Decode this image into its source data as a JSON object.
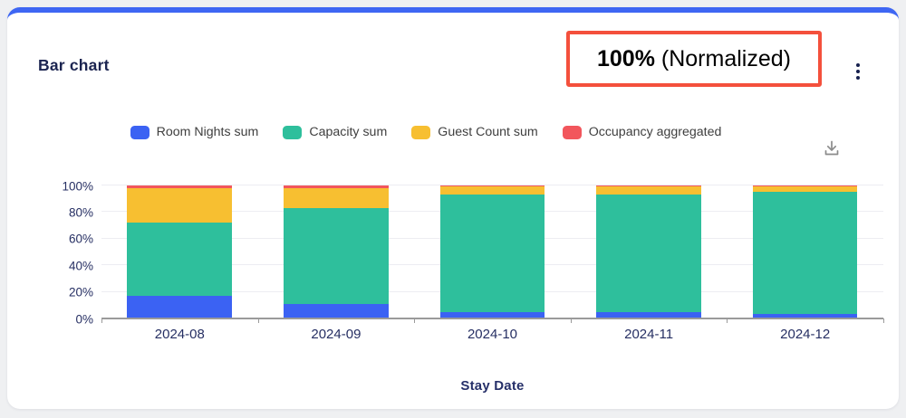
{
  "page": {
    "background": "#eff0f2",
    "accent_bar_color": "#3e66f3"
  },
  "card": {
    "title": "Bar chart",
    "annotation": {
      "value": "100%",
      "suffix": " (Normalized)",
      "border_color": "#f4503c"
    },
    "icons": {
      "menu": "kebab-menu-icon",
      "download": "download-icon"
    }
  },
  "chart_data": {
    "type": "bar",
    "stacked": true,
    "normalized": true,
    "title": "Bar chart",
    "categories": [
      "2024-08",
      "2024-09",
      "2024-10",
      "2024-11",
      "2024-12"
    ],
    "series": [
      {
        "name": "Room Nights sum",
        "color": "#3b62f3",
        "values": [
          17,
          11,
          5,
          4.5,
          3.5
        ]
      },
      {
        "name": "Capacity sum",
        "color": "#2ebf9c",
        "values": [
          55,
          72,
          88,
          88.5,
          91.5
        ]
      },
      {
        "name": "Guest Count sum",
        "color": "#f7bf31",
        "values": [
          26,
          15,
          6,
          6,
          4
        ]
      },
      {
        "name": "Occupancy aggregated",
        "color": "#f2565c",
        "values": [
          2,
          2,
          1,
          1,
          1
        ]
      }
    ],
    "xlabel": "Stay Date",
    "ylabel": "",
    "ylim": [
      0,
      100
    ],
    "y_ticks": [
      "0%",
      "20%",
      "40%",
      "60%",
      "80%",
      "100%"
    ],
    "grid": true,
    "legend_position": "top",
    "axis_color": "#9a9a9a",
    "gridline_color": "#ededf2",
    "label_color": "#262f63"
  }
}
